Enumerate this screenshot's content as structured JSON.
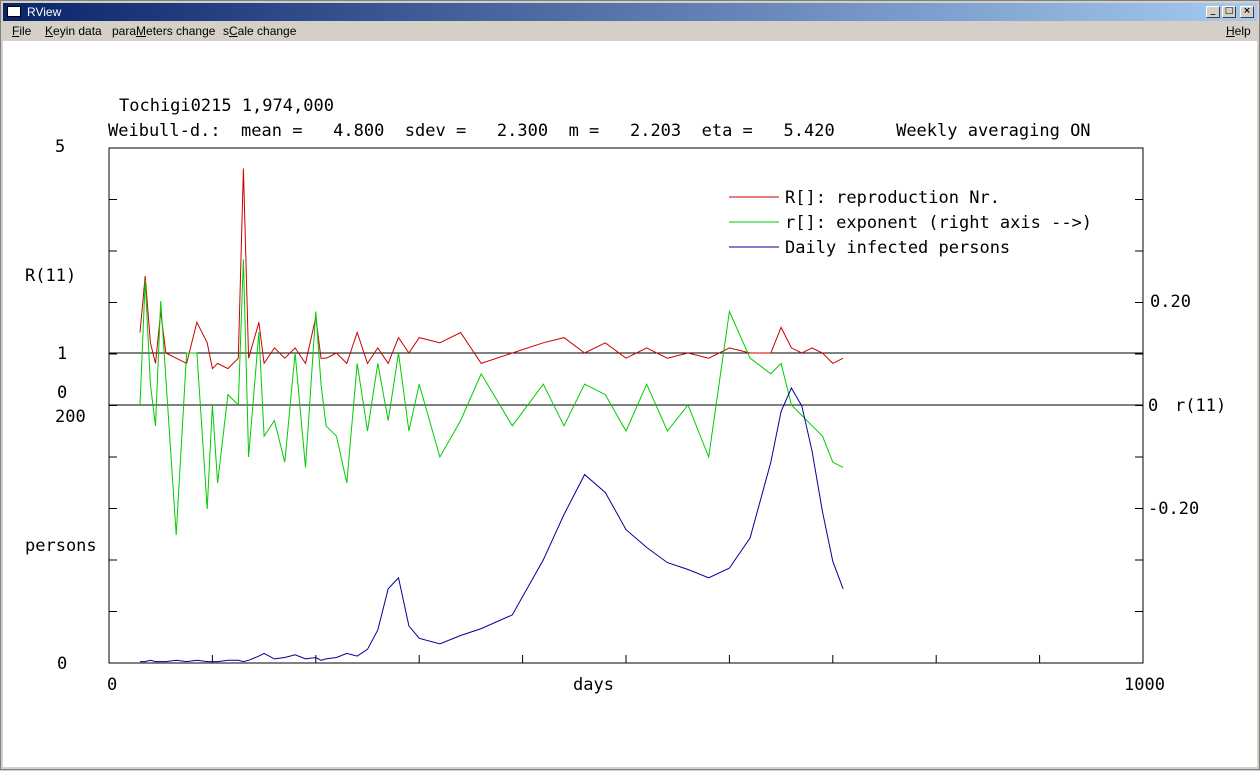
{
  "window": {
    "title": "RView"
  },
  "titlebar_buttons": [
    "minimize",
    "maximize",
    "close"
  ],
  "menu": [
    {
      "pre": "",
      "key": "F",
      "post": "ile"
    },
    {
      "pre": "",
      "key": "K",
      "post": "eyin data"
    },
    {
      "pre": "para",
      "key": "M",
      "post": "eters change"
    },
    {
      "pre": "s",
      "key": "C",
      "post": "ale change"
    },
    {
      "pre": "",
      "key": "H",
      "post": "elp"
    }
  ],
  "header": {
    "line1": "Tochigi0215   1,974,000",
    "line2": "Weibull-d.:  mean =   4.800  sdev =   2.300  m =   2.203  eta =   5.420      Weekly averaging ON"
  },
  "axes": {
    "left_top_max": "5",
    "left_top_label": "R(11)",
    "left_one": "1",
    "left_zero": "0",
    "left_bottom_max": "200",
    "left_bottom_label": "persons",
    "left_bottom_zero": "0",
    "x_min": "0",
    "x_max": "1000",
    "x_label": "days",
    "right_pos": "0.20",
    "right_zero": "0",
    "right_label": "r(11)",
    "right_neg": "-0.20"
  },
  "chart_data": {
    "type": "line",
    "xlim": [
      0,
      1000
    ],
    "xlabel": "days",
    "legend": [
      "R[]: reproduction Nr.",
      "r[]: exponent (right axis -->)",
      "Daily infected persons"
    ],
    "colors": {
      "R": "#cc0000",
      "r": "#00cc00",
      "daily": "#000099",
      "frame": "#000000"
    },
    "R_ylim": [
      0,
      5
    ],
    "r_ylim": [
      -0.4,
      0.4
    ],
    "persons_ylim": [
      0,
      200
    ],
    "x": [
      30,
      35,
      40,
      45,
      50,
      55,
      65,
      75,
      85,
      95,
      100,
      105,
      115,
      125,
      130,
      135,
      145,
      150,
      160,
      170,
      180,
      190,
      200,
      205,
      210,
      220,
      230,
      240,
      250,
      260,
      270,
      280,
      290,
      300,
      320,
      340,
      360,
      390,
      420,
      440,
      460,
      480,
      500,
      520,
      540,
      560,
      580,
      600,
      620,
      640,
      650,
      660,
      670,
      680,
      690,
      700,
      710
    ],
    "R": [
      1.4,
      2.5,
      1.2,
      0.8,
      1.8,
      1.0,
      0.9,
      0.8,
      1.6,
      1.2,
      0.7,
      0.8,
      0.7,
      0.9,
      4.6,
      0.9,
      1.6,
      0.8,
      1.1,
      0.9,
      1.1,
      0.8,
      1.7,
      0.9,
      0.9,
      1.0,
      0.8,
      1.4,
      0.8,
      1.1,
      0.8,
      1.3,
      1.0,
      1.3,
      1.2,
      1.4,
      0.8,
      1.0,
      1.2,
      1.3,
      1.0,
      1.2,
      0.9,
      1.1,
      0.9,
      1.0,
      0.9,
      1.1,
      1.0,
      1.0,
      1.5,
      1.1,
      1.0,
      1.1,
      1.0,
      0.8,
      0.9
    ],
    "r": [
      0.0,
      0.24,
      0.04,
      -0.04,
      0.2,
      0.05,
      -0.25,
      0.1,
      0.1,
      -0.2,
      0.0,
      -0.15,
      0.02,
      0.0,
      0.28,
      -0.1,
      0.14,
      -0.06,
      -0.03,
      -0.11,
      0.1,
      -0.12,
      0.18,
      0.04,
      -0.04,
      -0.06,
      -0.15,
      0.08,
      -0.05,
      0.08,
      -0.03,
      0.1,
      -0.05,
      0.04,
      -0.1,
      -0.03,
      0.06,
      -0.04,
      0.04,
      -0.04,
      0.04,
      0.02,
      -0.05,
      0.04,
      -0.05,
      0.0,
      -0.1,
      0.18,
      0.09,
      0.06,
      0.08,
      0.0,
      -0.02,
      -0.04,
      -0.06,
      -0.11,
      -0.12
    ],
    "daily": [
      1,
      1,
      2,
      1,
      1,
      1,
      2,
      1,
      2,
      1,
      1,
      1,
      2,
      2,
      1,
      2,
      5,
      7,
      3,
      4,
      6,
      3,
      4,
      2,
      3,
      4,
      7,
      5,
      10,
      24,
      54,
      62,
      27,
      18,
      14,
      20,
      25,
      35,
      75,
      108,
      137,
      124,
      97,
      84,
      73,
      68,
      62,
      69,
      91,
      146,
      183,
      200,
      187,
      154,
      110,
      74,
      54
    ]
  }
}
